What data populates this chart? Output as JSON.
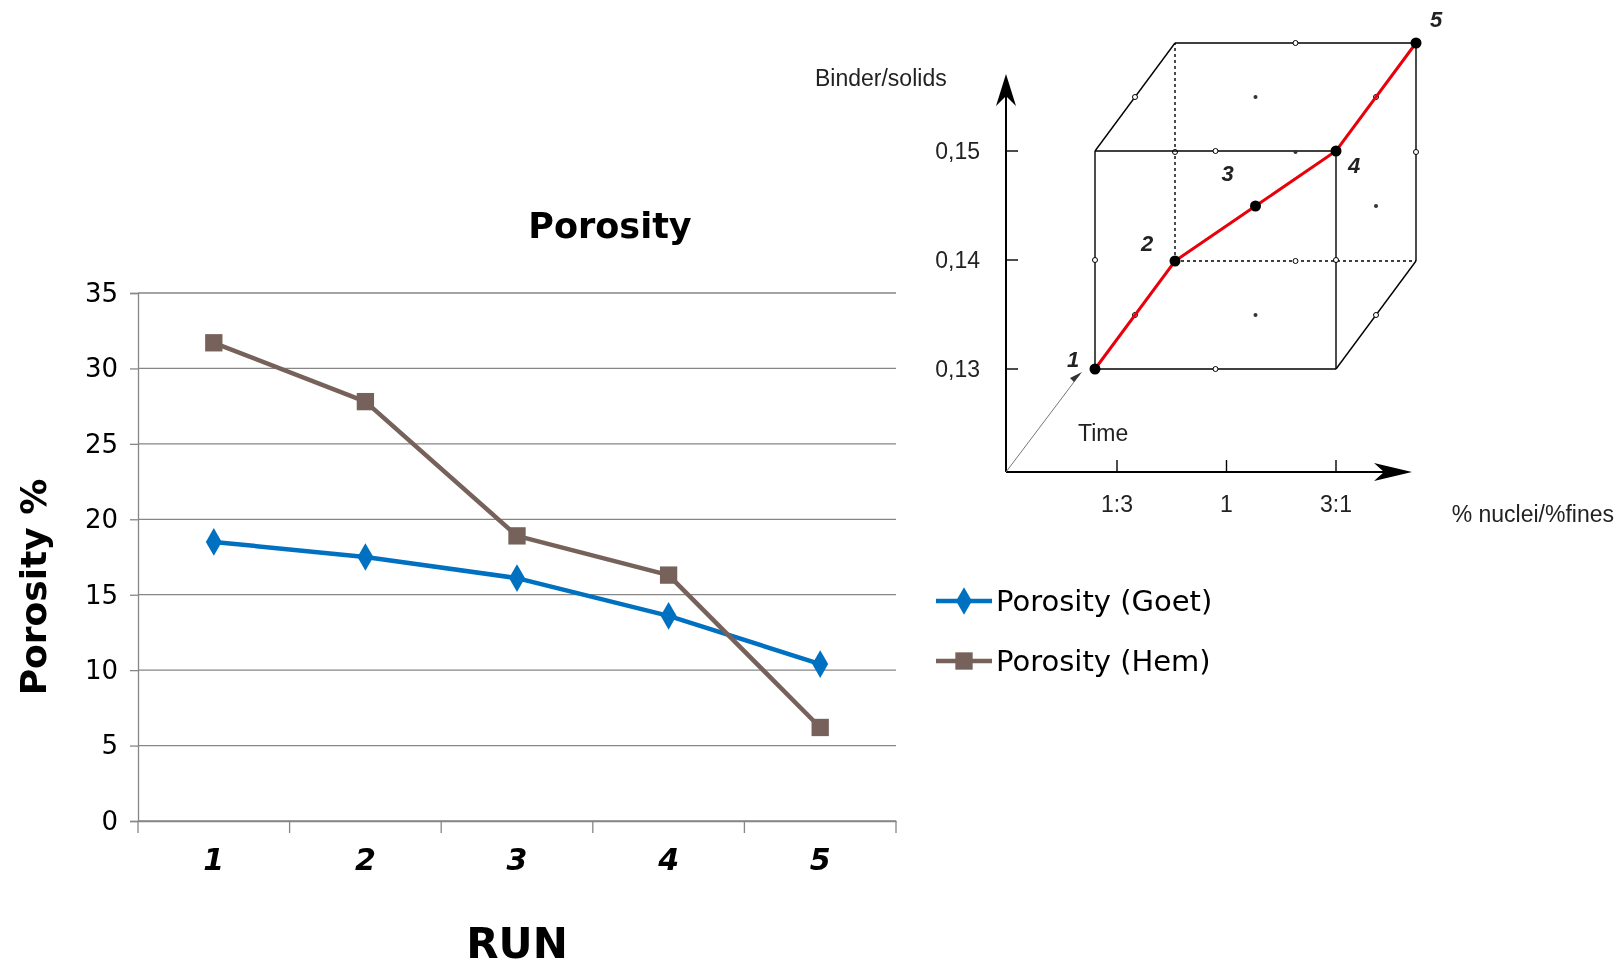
{
  "chart_data": [
    {
      "type": "line",
      "title": "Porosity",
      "xlabel": "RUN",
      "ylabel": "Porosity %",
      "categories": [
        "1",
        "2",
        "3",
        "4",
        "5"
      ],
      "series": [
        {
          "name": "Porosity (Goet)",
          "color": "#0070c0",
          "marker": "diamond",
          "values": [
            18.5,
            17.5,
            16.1,
            13.6,
            10.4
          ]
        },
        {
          "name": "Porosity (Hem)",
          "color": "#76625a",
          "marker": "square",
          "values": [
            31.7,
            27.8,
            18.9,
            16.3,
            6.2
          ]
        }
      ],
      "ylim": [
        0,
        35
      ],
      "yticks": [
        0,
        5,
        10,
        15,
        20,
        25,
        30,
        35
      ],
      "grid": "y",
      "legend": "right"
    },
    {
      "type": "other",
      "xlabel": "% nuclei/%fines",
      "ylabel": "Binder/solids",
      "categories": [
        "1:3",
        "1",
        "3:1"
      ],
      "annotations": [
        "0,13",
        "0,14",
        "0,15",
        "Time",
        "1",
        "2",
        "3",
        "4",
        "5"
      ]
    }
  ]
}
